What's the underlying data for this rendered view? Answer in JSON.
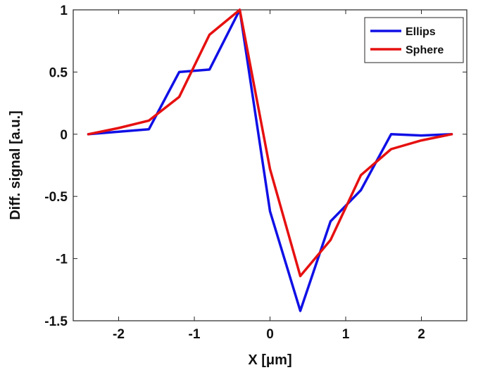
{
  "chart_data": {
    "type": "line",
    "title": "",
    "xlabel": "X [μm]",
    "ylabel": "Diff. signal [a.u.]",
    "xlim": [
      -2.6,
      2.6
    ],
    "ylim": [
      -1.5,
      1
    ],
    "xticks": [
      -2,
      -1,
      0,
      1,
      2
    ],
    "xtick_labels": [
      "-2",
      "-1",
      "0",
      "1",
      "2"
    ],
    "yticks": [
      -1.5,
      -1,
      -0.5,
      0,
      0.5,
      1
    ],
    "ytick_labels": [
      "-1.5",
      "-1",
      "-0.5",
      "0",
      "0.5",
      "1"
    ],
    "grid": false,
    "legend_position": "top-right",
    "series": [
      {
        "name": "Ellips",
        "color": "#1010e6",
        "x": [
          -2.4,
          -1.6,
          -1.2,
          -0.8,
          -0.4,
          0,
          0.4,
          0.8,
          1.2,
          1.6,
          2.0,
          2.4
        ],
        "y": [
          0.0,
          0.04,
          0.5,
          0.52,
          1.0,
          -0.62,
          -1.42,
          -0.7,
          -0.45,
          0.0,
          -0.01,
          0.0
        ]
      },
      {
        "name": "Sphere",
        "color": "#e61010",
        "x": [
          -2.4,
          -2.0,
          -1.6,
          -1.2,
          -0.8,
          -0.4,
          0,
          0.4,
          0.8,
          1.2,
          1.6,
          2.0,
          2.4
        ],
        "y": [
          0.0,
          0.05,
          0.11,
          0.3,
          0.8,
          1.0,
          -0.28,
          -1.14,
          -0.85,
          -0.33,
          -0.12,
          -0.05,
          0.0
        ]
      }
    ]
  }
}
